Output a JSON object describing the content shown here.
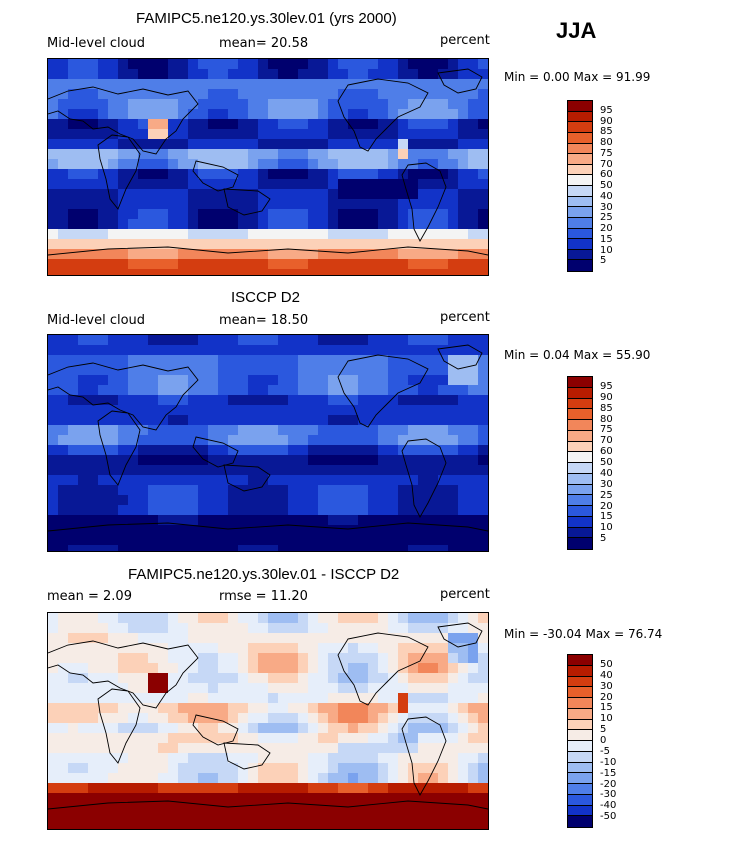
{
  "season": "JJA",
  "panels": [
    {
      "title": "FAMIPC5.ne120.ys.30lev.01 (yrs 2000)",
      "left_label": "Mid-level cloud",
      "center_label": "mean=  20.58",
      "right_label": "percent",
      "minmax": "Min =   0.00 Max =  91.99",
      "colorbar": {
        "labels": [
          "95",
          "90",
          "85",
          "80",
          "75",
          "70",
          "60",
          "50",
          "40",
          "30",
          "25",
          "20",
          "15",
          "10",
          "5"
        ],
        "colors": [
          "#8b0000",
          "#b71c00",
          "#d43d10",
          "#e8602b",
          "#f2865a",
          "#f8aa86",
          "#fcd1b8",
          "#f4f4f4",
          "#c6d8f6",
          "#9ebdf2",
          "#7aa2ee",
          "#4f7ee8",
          "#2b58de",
          "#1233c8",
          "#081896",
          "#00006e"
        ]
      },
      "field": "model"
    },
    {
      "title": "ISCCP D2",
      "left_label": "Mid-level cloud",
      "center_label": "mean=  18.50",
      "right_label": "percent",
      "minmax": "Min =   0.04 Max =  55.90",
      "colorbar": {
        "labels": [
          "95",
          "90",
          "85",
          "80",
          "75",
          "70",
          "60",
          "50",
          "40",
          "30",
          "25",
          "20",
          "15",
          "10",
          "5"
        ],
        "colors": [
          "#8b0000",
          "#b71c00",
          "#d43d10",
          "#e8602b",
          "#f2865a",
          "#f8aa86",
          "#fcd1b8",
          "#f4f4f4",
          "#c6d8f6",
          "#9ebdf2",
          "#7aa2ee",
          "#4f7ee8",
          "#2b58de",
          "#1233c8",
          "#081896",
          "#00006e"
        ]
      },
      "field": "obs"
    },
    {
      "title": "FAMIPC5.ne120.ys.30lev.01 - ISCCP D2",
      "left_label": "mean =   2.09",
      "center_label": "rmse =  11.20",
      "right_label": "percent",
      "minmax": "Min = -30.04 Max =  76.74",
      "colorbar": {
        "labels": [
          "50",
          "40",
          "30",
          "20",
          "15",
          "10",
          "5",
          "0",
          "-5",
          "-10",
          "-15",
          "-20",
          "-30",
          "-40",
          "-50"
        ],
        "colors": [
          "#8b0000",
          "#b71c00",
          "#d43d10",
          "#e8602b",
          "#f2865a",
          "#f8aa86",
          "#fcd1b8",
          "#f6ece6",
          "#e6eefa",
          "#c6d8f6",
          "#9ebdf2",
          "#7aa2ee",
          "#4f7ee8",
          "#2b58de",
          "#1233c8",
          "#00006e"
        ]
      },
      "field": "diff"
    }
  ]
}
